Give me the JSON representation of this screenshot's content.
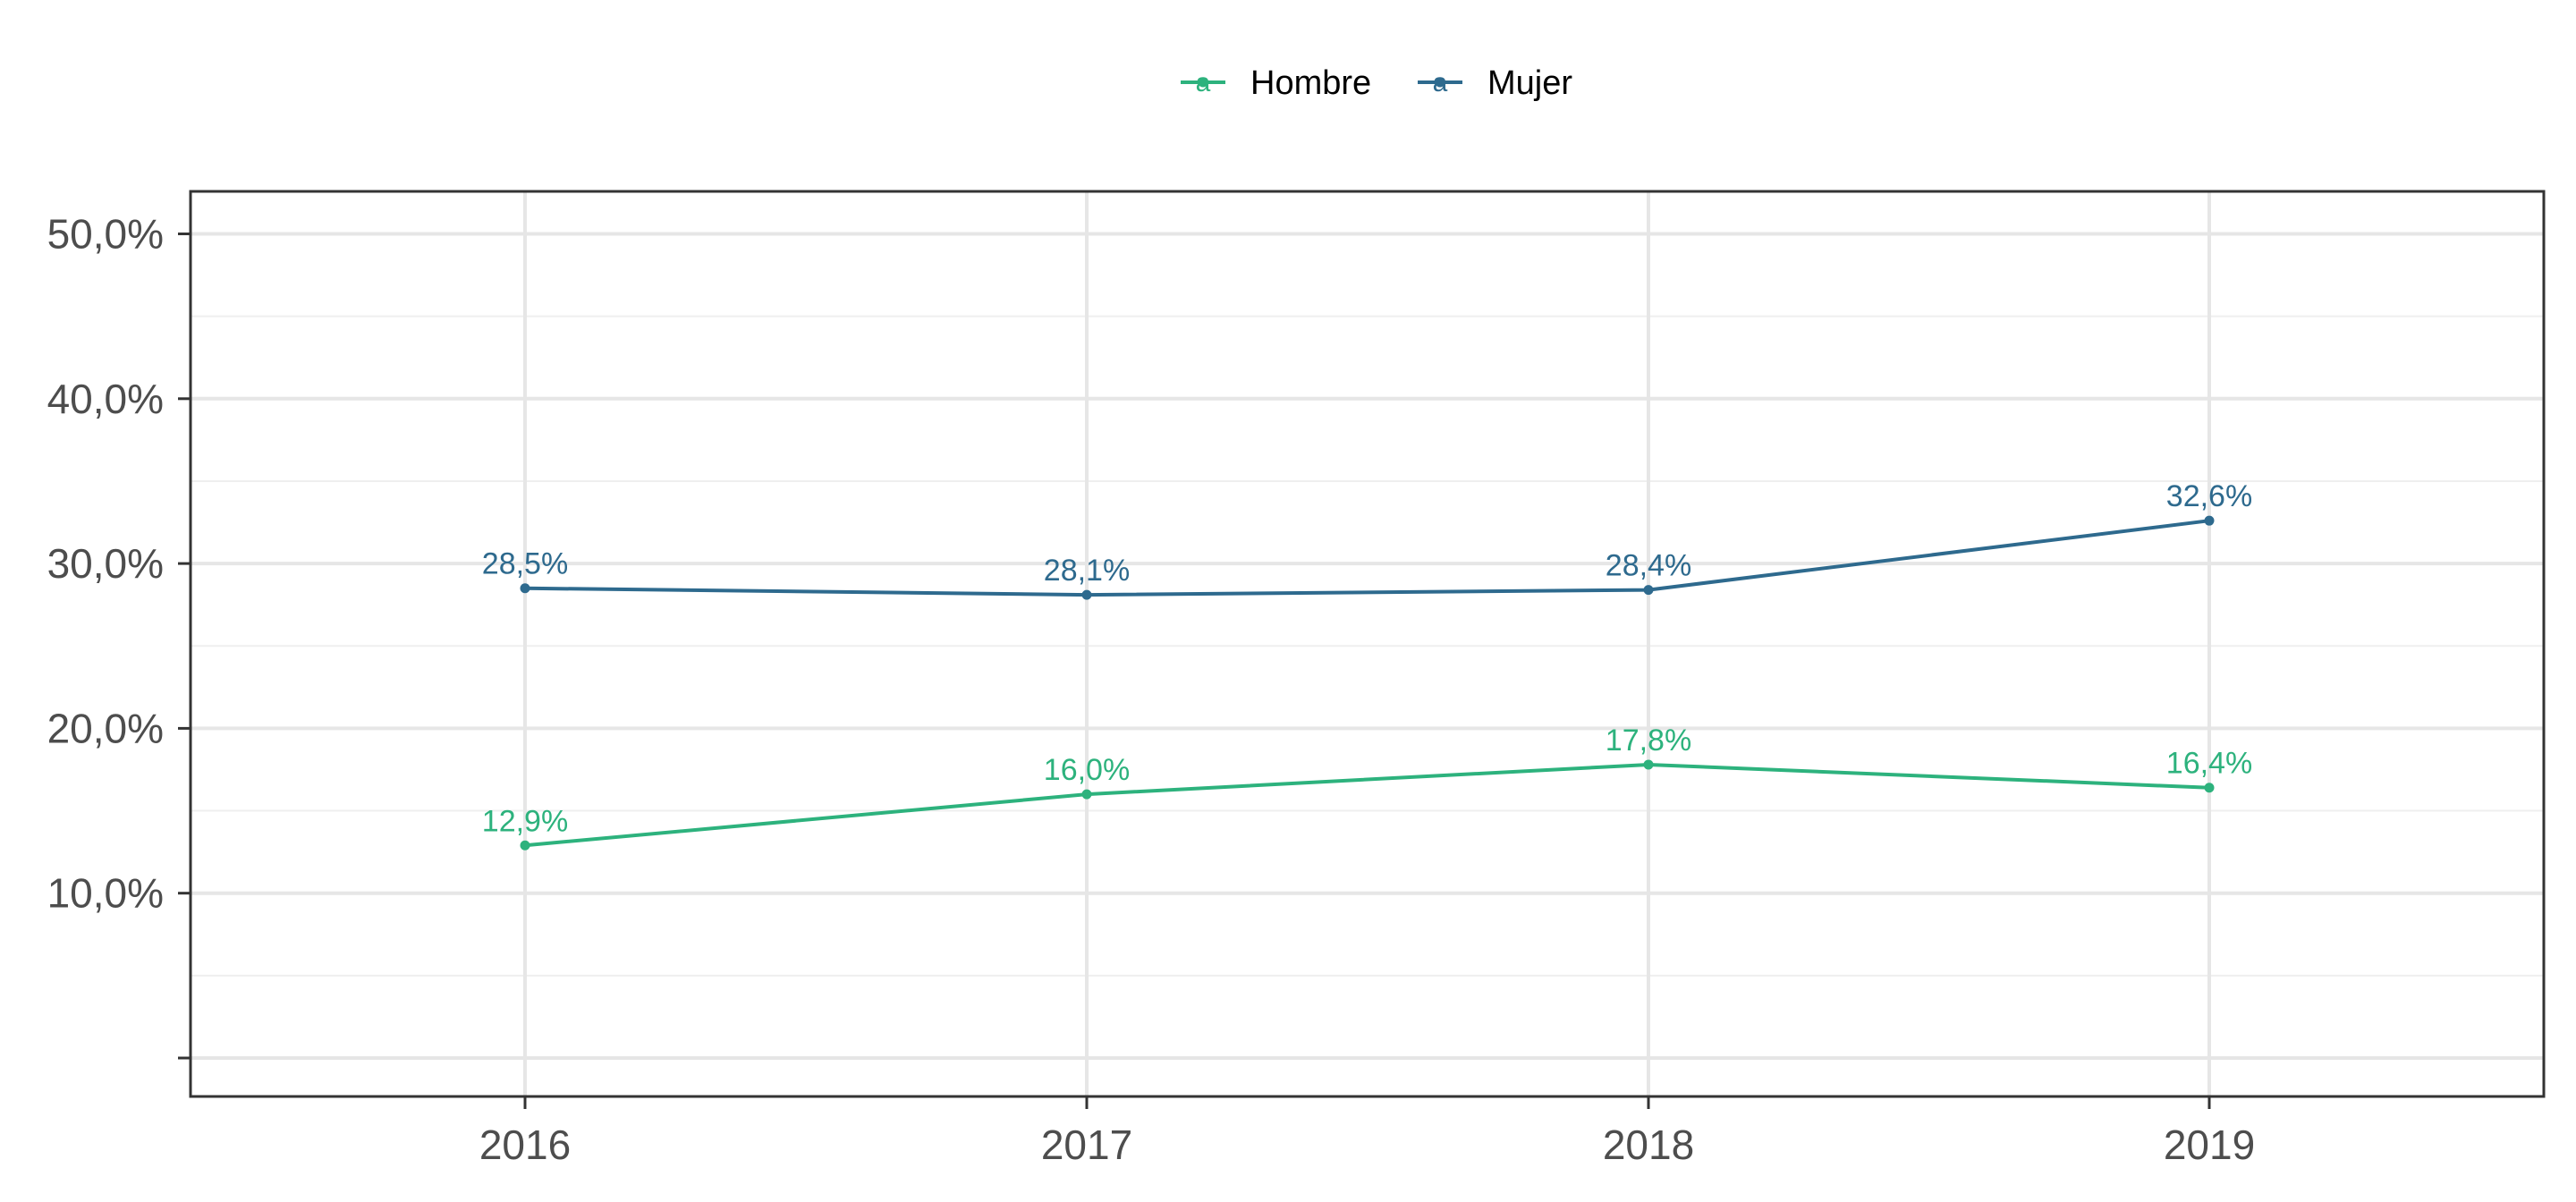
{
  "chart_data": {
    "type": "line",
    "title": "",
    "xlabel": "",
    "ylabel": "",
    "x": [
      "2016",
      "2017",
      "2018",
      "2019"
    ],
    "ylim": [
      0,
      52
    ],
    "yticks": [
      10,
      20,
      30,
      40,
      50
    ],
    "ytick_labels": [
      "10,0%",
      "20,0%",
      "30,0%",
      "40,0%",
      "50,0%"
    ],
    "grid": true,
    "legend_position": "top",
    "series": [
      {
        "name": "Hombre",
        "color": "#2db27d",
        "values": [
          12.9,
          16.0,
          17.8,
          16.4
        ],
        "labels": [
          "12,9%",
          "16,0%",
          "17,8%",
          "16,4%"
        ]
      },
      {
        "name": "Mujer",
        "color": "#2e6a8e",
        "values": [
          28.5,
          28.1,
          28.4,
          32.6
        ],
        "labels": [
          "28,5%",
          "28,1%",
          "28,4%",
          "32,6%"
        ]
      }
    ]
  }
}
